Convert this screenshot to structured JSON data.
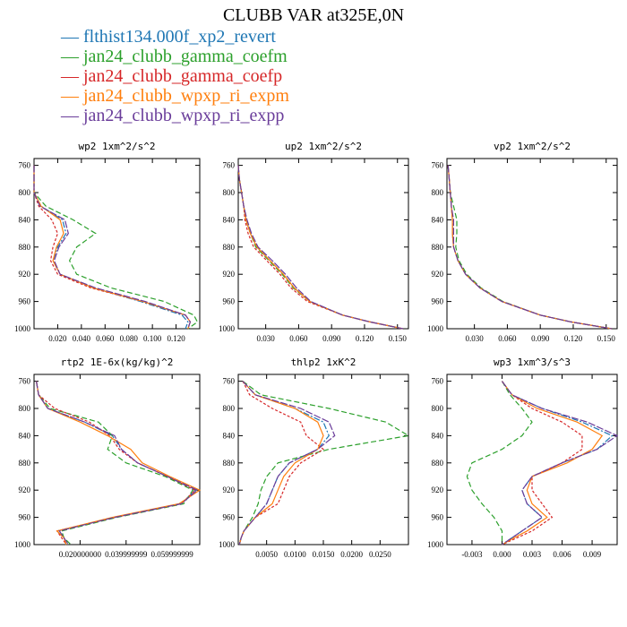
{
  "title": "CLUBB VAR at325E,0N",
  "legend": [
    {
      "label": "flthist134.000f_xp2_revert",
      "color": "#1f77b4"
    },
    {
      "label": "jan24_clubb_gamma_coefm",
      "color": "#2ca02c"
    },
    {
      "label": "jan24_clubb_gamma_coefp",
      "color": "#d62728"
    },
    {
      "label": "jan24_clubb_wpxp_ri_expm",
      "color": "#ff7f0e"
    },
    {
      "label": "jan24_clubb_wpxp_ri_expp",
      "color": "#6a3d9a"
    }
  ],
  "chart_data": [
    {
      "type": "line",
      "title": "wp2  1xm^2/s^2",
      "xlim": [
        0.0,
        0.14
      ],
      "ylim": [
        1000,
        750
      ],
      "xticks": [
        0.02,
        0.04,
        0.06,
        0.08,
        0.1,
        0.12
      ],
      "xtick_labels": [
        "0.020",
        "0.040",
        "0.060",
        "0.080",
        "0.100",
        "0.120"
      ],
      "yticks": [
        760,
        800,
        840,
        880,
        920,
        960,
        1000
      ],
      "levels": [
        760,
        780,
        800,
        820,
        840,
        860,
        880,
        900,
        920,
        940,
        960,
        980,
        990,
        1000
      ],
      "series": [
        {
          "values": [
            0.0,
            0.0,
            0.0,
            0.006,
            0.024,
            0.027,
            0.02,
            0.016,
            0.022,
            0.05,
            0.09,
            0.125,
            0.13,
            0.128
          ]
        },
        {
          "values": [
            0.0,
            0.0,
            0.0,
            0.01,
            0.033,
            0.052,
            0.036,
            0.03,
            0.036,
            0.065,
            0.11,
            0.135,
            0.138,
            0.13
          ]
        },
        {
          "values": [
            0.0,
            0.0,
            0.0,
            0.004,
            0.015,
            0.02,
            0.016,
            0.014,
            0.02,
            0.048,
            0.092,
            0.128,
            0.132,
            0.13
          ]
        },
        {
          "values": [
            0.0,
            0.0,
            0.0,
            0.006,
            0.022,
            0.025,
            0.019,
            0.016,
            0.022,
            0.05,
            0.092,
            0.128,
            0.132,
            0.13
          ]
        },
        {
          "values": [
            0.0,
            0.0,
            0.0,
            0.005,
            0.026,
            0.029,
            0.021,
            0.017,
            0.022,
            0.052,
            0.094,
            0.128,
            0.132,
            0.13
          ]
        }
      ]
    },
    {
      "type": "line",
      "title": "up2  1xm^2/s^2",
      "xlim": [
        0.005,
        0.16
      ],
      "ylim": [
        1000,
        750
      ],
      "xticks": [
        0.03,
        0.06,
        0.09,
        0.12,
        0.15
      ],
      "xtick_labels": [
        "0.030",
        "0.060",
        "0.090",
        "0.120",
        "0.150"
      ],
      "yticks": [
        760,
        800,
        840,
        880,
        920,
        960,
        1000
      ],
      "levels": [
        760,
        780,
        800,
        820,
        840,
        860,
        880,
        900,
        920,
        940,
        960,
        980,
        990,
        1000
      ],
      "series": [
        {
          "values": [
            0.005,
            0.006,
            0.008,
            0.01,
            0.012,
            0.016,
            0.022,
            0.034,
            0.046,
            0.056,
            0.07,
            0.1,
            0.125,
            0.155
          ]
        },
        {
          "values": [
            0.005,
            0.006,
            0.008,
            0.01,
            0.012,
            0.016,
            0.021,
            0.033,
            0.045,
            0.055,
            0.07,
            0.1,
            0.125,
            0.155
          ]
        },
        {
          "values": [
            0.005,
            0.006,
            0.008,
            0.01,
            0.011,
            0.014,
            0.019,
            0.031,
            0.043,
            0.053,
            0.068,
            0.1,
            0.125,
            0.155
          ]
        },
        {
          "values": [
            0.005,
            0.006,
            0.008,
            0.01,
            0.012,
            0.016,
            0.022,
            0.034,
            0.046,
            0.056,
            0.07,
            0.1,
            0.125,
            0.155
          ]
        },
        {
          "values": [
            0.005,
            0.006,
            0.008,
            0.01,
            0.013,
            0.017,
            0.023,
            0.036,
            0.048,
            0.058,
            0.071,
            0.1,
            0.125,
            0.155
          ]
        }
      ]
    },
    {
      "type": "line",
      "title": "vp2  1xm^2/s^2",
      "xlim": [
        0.005,
        0.16
      ],
      "ylim": [
        1000,
        750
      ],
      "xticks": [
        0.03,
        0.06,
        0.09,
        0.12,
        0.15
      ],
      "xtick_labels": [
        "0.030",
        "0.060",
        "0.090",
        "0.120",
        "0.150"
      ],
      "yticks": [
        760,
        800,
        840,
        880,
        920,
        960,
        1000
      ],
      "levels": [
        760,
        780,
        800,
        820,
        840,
        860,
        880,
        900,
        920,
        940,
        960,
        980,
        990,
        1000
      ],
      "series": [
        {
          "values": [
            0.006,
            0.007,
            0.008,
            0.009,
            0.01,
            0.01,
            0.011,
            0.015,
            0.022,
            0.035,
            0.055,
            0.09,
            0.118,
            0.155
          ]
        },
        {
          "values": [
            0.006,
            0.007,
            0.008,
            0.011,
            0.014,
            0.014,
            0.013,
            0.016,
            0.023,
            0.036,
            0.056,
            0.09,
            0.118,
            0.155
          ]
        },
        {
          "values": [
            0.006,
            0.007,
            0.008,
            0.009,
            0.01,
            0.01,
            0.011,
            0.015,
            0.022,
            0.035,
            0.055,
            0.09,
            0.118,
            0.155
          ]
        },
        {
          "values": [
            0.006,
            0.007,
            0.008,
            0.009,
            0.01,
            0.01,
            0.011,
            0.015,
            0.022,
            0.035,
            0.055,
            0.09,
            0.118,
            0.155
          ]
        },
        {
          "values": [
            0.006,
            0.007,
            0.008,
            0.009,
            0.011,
            0.011,
            0.011,
            0.015,
            0.022,
            0.035,
            0.055,
            0.09,
            0.118,
            0.155
          ]
        }
      ]
    },
    {
      "type": "line",
      "title": "rtp2  1E-6x(kg/kg)^2",
      "xlim": [
        0.0,
        0.072
      ],
      "ylim": [
        1000,
        750
      ],
      "xticks": [
        0.02,
        0.04,
        0.06
      ],
      "xtick_labels": [
        "0.020000000",
        "0.039999999",
        "0.059999999"
      ],
      "yticks": [
        760,
        800,
        840,
        880,
        920,
        960,
        1000
      ],
      "levels": [
        760,
        780,
        800,
        820,
        840,
        860,
        880,
        900,
        920,
        940,
        960,
        980,
        990,
        1000
      ],
      "series": [
        {
          "values": [
            0.001,
            0.002,
            0.006,
            0.022,
            0.034,
            0.038,
            0.045,
            0.058,
            0.07,
            0.064,
            0.035,
            0.01,
            0.013,
            0.014
          ]
        },
        {
          "values": [
            0.001,
            0.002,
            0.007,
            0.028,
            0.034,
            0.032,
            0.04,
            0.057,
            0.069,
            0.065,
            0.036,
            0.012,
            0.013,
            0.016
          ]
        },
        {
          "values": [
            0.001,
            0.002,
            0.009,
            0.024,
            0.033,
            0.037,
            0.045,
            0.058,
            0.07,
            0.064,
            0.035,
            0.01,
            0.012,
            0.014
          ]
        },
        {
          "values": [
            0.001,
            0.002,
            0.006,
            0.02,
            0.032,
            0.042,
            0.047,
            0.059,
            0.072,
            0.063,
            0.034,
            0.01,
            0.013,
            0.014
          ]
        },
        {
          "values": [
            0.001,
            0.002,
            0.006,
            0.022,
            0.035,
            0.038,
            0.045,
            0.058,
            0.071,
            0.064,
            0.035,
            0.011,
            0.013,
            0.015
          ]
        }
      ]
    },
    {
      "type": "line",
      "title": "thlp2  1xK^2",
      "xlim": [
        0.0,
        0.03
      ],
      "ylim": [
        1000,
        750
      ],
      "xticks": [
        0.005,
        0.01,
        0.015,
        0.02,
        0.025
      ],
      "xtick_labels": [
        "0.0050",
        "0.0100",
        "0.0150",
        "0.0200",
        "0.0250"
      ],
      "yticks": [
        760,
        800,
        840,
        880,
        920,
        960,
        1000
      ],
      "levels": [
        760,
        780,
        800,
        820,
        840,
        860,
        880,
        900,
        920,
        940,
        960,
        980,
        990,
        1000
      ],
      "series": [
        {
          "values": [
            0.0008,
            0.003,
            0.01,
            0.015,
            0.016,
            0.014,
            0.009,
            0.007,
            0.006,
            0.005,
            0.003,
            0.001,
            0.0005,
            0.0002
          ]
        },
        {
          "values": [
            0.0008,
            0.004,
            0.016,
            0.026,
            0.03,
            0.016,
            0.007,
            0.005,
            0.004,
            0.0035,
            0.0025,
            0.001,
            0.0005,
            0.0002
          ]
        },
        {
          "values": [
            0.0008,
            0.002,
            0.006,
            0.011,
            0.012,
            0.015,
            0.011,
            0.009,
            0.008,
            0.007,
            0.003,
            0.001,
            0.0005,
            0.0002
          ]
        },
        {
          "values": [
            0.0008,
            0.003,
            0.01,
            0.014,
            0.015,
            0.014,
            0.01,
            0.008,
            0.007,
            0.006,
            0.003,
            0.001,
            0.0005,
            0.0002
          ]
        },
        {
          "values": [
            0.0008,
            0.003,
            0.011,
            0.016,
            0.017,
            0.014,
            0.009,
            0.007,
            0.006,
            0.005,
            0.003,
            0.001,
            0.0005,
            0.0002
          ]
        }
      ]
    },
    {
      "type": "line",
      "title": "wp3  1xm^3/s^3",
      "xlim": [
        -0.0055,
        0.0115
      ],
      "ylim": [
        1000,
        750
      ],
      "xticks": [
        -0.003,
        0.0,
        0.003,
        0.006,
        0.009
      ],
      "xtick_labels": [
        "-0.003",
        "0.000",
        "0.003",
        "0.006",
        "0.009"
      ],
      "yticks": [
        760,
        800,
        840,
        880,
        920,
        960,
        1000
      ],
      "levels": [
        760,
        780,
        800,
        820,
        840,
        860,
        880,
        900,
        920,
        940,
        960,
        980,
        990,
        1000
      ],
      "series": [
        {
          "values": [
            0.0,
            0.001,
            0.004,
            0.008,
            0.011,
            0.0095,
            0.006,
            0.003,
            0.002,
            0.0025,
            0.004,
            0.002,
            0.001,
            0.0
          ]
        },
        {
          "values": [
            0.0,
            0.0008,
            0.002,
            0.003,
            0.002,
            0.0,
            -0.003,
            -0.0035,
            -0.003,
            -0.002,
            -0.0008,
            0.0,
            0.0,
            0.0
          ]
        },
        {
          "values": [
            0.0,
            0.001,
            0.003,
            0.006,
            0.008,
            0.008,
            0.006,
            0.003,
            0.003,
            0.004,
            0.005,
            0.003,
            0.0015,
            0.0
          ]
        },
        {
          "values": [
            0.0,
            0.001,
            0.0035,
            0.0075,
            0.01,
            0.009,
            0.0065,
            0.003,
            0.0025,
            0.003,
            0.0045,
            0.0025,
            0.0012,
            0.0
          ]
        },
        {
          "values": [
            0.0,
            0.001,
            0.004,
            0.0085,
            0.0115,
            0.0095,
            0.006,
            0.003,
            0.002,
            0.0025,
            0.004,
            0.002,
            0.001,
            0.0
          ]
        }
      ]
    }
  ]
}
